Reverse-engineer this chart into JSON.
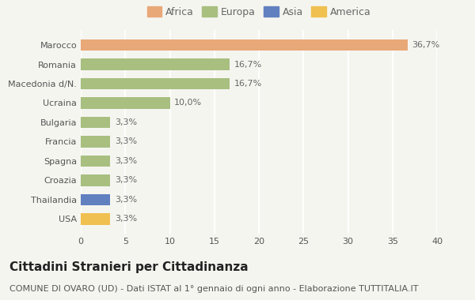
{
  "categories": [
    "USA",
    "Thailandia",
    "Croazia",
    "Spagna",
    "Francia",
    "Bulgaria",
    "Ucraina",
    "Macedonia d/N.",
    "Romania",
    "Marocco"
  ],
  "values": [
    3.3,
    3.3,
    3.3,
    3.3,
    3.3,
    3.3,
    10.0,
    16.7,
    16.7,
    36.7
  ],
  "labels": [
    "3,3%",
    "3,3%",
    "3,3%",
    "3,3%",
    "3,3%",
    "3,3%",
    "10,0%",
    "16,7%",
    "16,7%",
    "36,7%"
  ],
  "colors": [
    "#f0c050",
    "#6080c0",
    "#a8bf80",
    "#a8bf80",
    "#a8bf80",
    "#a8bf80",
    "#a8bf80",
    "#a8bf80",
    "#a8bf80",
    "#e8a878"
  ],
  "legend_labels": [
    "Africa",
    "Europa",
    "Asia",
    "America"
  ],
  "legend_colors": [
    "#e8a878",
    "#a8bf80",
    "#6080c0",
    "#f0c050"
  ],
  "title": "Cittadini Stranieri per Cittadinanza",
  "subtitle": "COMUNE DI OVARO (UD) - Dati ISTAT al 1° gennaio di ogni anno - Elaborazione TUTTITALIA.IT",
  "xlim": [
    0,
    40
  ],
  "xticks": [
    0,
    5,
    10,
    15,
    20,
    25,
    30,
    35,
    40
  ],
  "background_color": "#f5f5f0",
  "bar_height": 0.6,
  "title_fontsize": 11,
  "subtitle_fontsize": 8,
  "label_fontsize": 8,
  "tick_fontsize": 8,
  "legend_fontsize": 9
}
